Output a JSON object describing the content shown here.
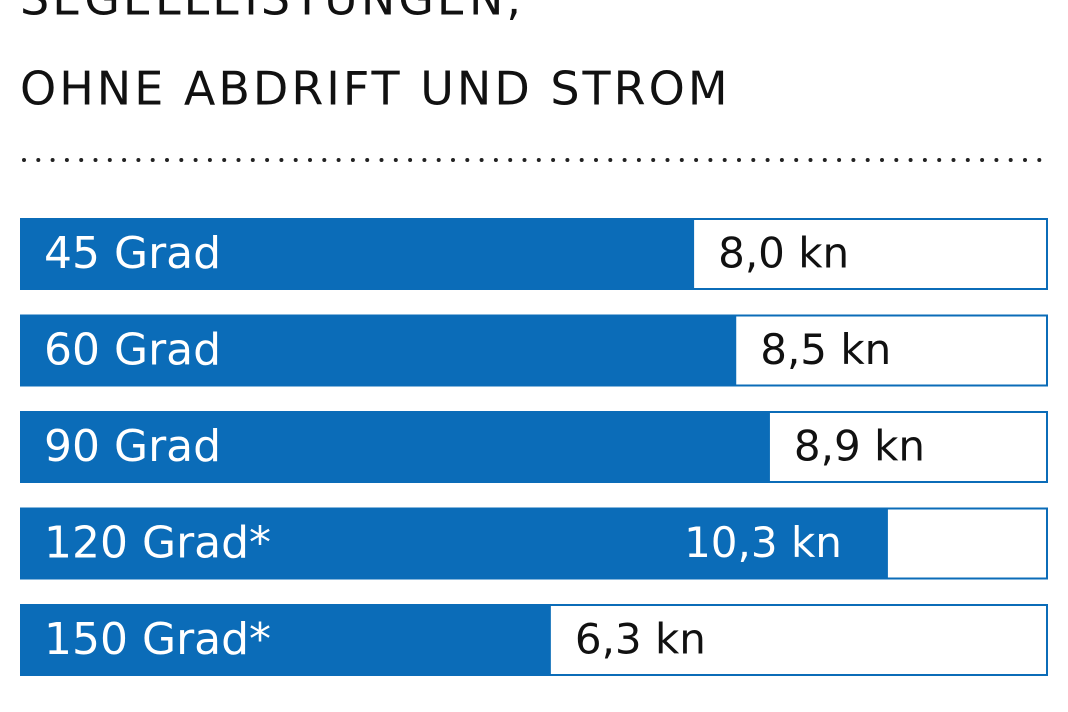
{
  "chart_data": {
    "type": "bar",
    "orientation": "horizontal",
    "title": [
      "SEGELLEISTUNGEN,",
      "OHNE ABDRIFT UND STROM"
    ],
    "categories": [
      "45 Grad",
      "60 Grad",
      "90 Grad",
      "120 Grad*",
      "150 Grad*"
    ],
    "values": [
      8.0,
      8.5,
      8.9,
      10.3,
      6.3
    ],
    "value_labels": [
      "8,0 kn",
      "8,5 kn",
      "8,9 kn",
      "10,3 kn",
      "6,3 kn"
    ],
    "color": "#0b6cb8",
    "xlim": [
      0,
      12.2
    ]
  }
}
